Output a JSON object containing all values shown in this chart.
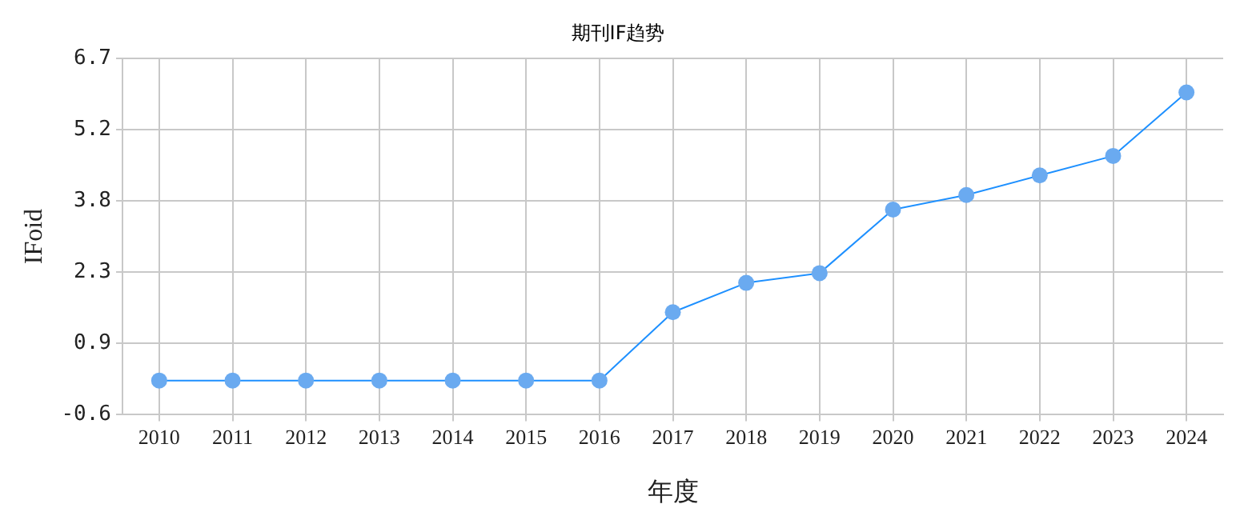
{
  "chart_data": {
    "type": "line",
    "title": "期刊IF趋势",
    "xlabel": "年度",
    "ylabel": "IFoid",
    "categories": [
      "2010",
      "2011",
      "2012",
      "2013",
      "2014",
      "2015",
      "2016",
      "2017",
      "2018",
      "2019",
      "2020",
      "2021",
      "2022",
      "2023",
      "2024"
    ],
    "series": [
      {
        "color": "#1e90ff",
        "values": [
          0.1,
          0.1,
          0.1,
          0.1,
          0.1,
          0.1,
          0.1,
          1.5,
          2.1,
          2.3,
          3.6,
          3.9,
          4.3,
          4.7,
          6.0
        ]
      }
    ],
    "ylim": [
      -0.6,
      6.7
    ],
    "yticks": [
      -0.6,
      {
        "value": 0.86,
        "label": "0.9"
      },
      {
        "value": 2.32,
        "label": "2.3"
      },
      {
        "value": 3.78,
        "label": "3.8"
      },
      {
        "value": 5.24,
        "label": "5.2"
      },
      6.7
    ],
    "grid": true,
    "marker": "circle",
    "line_style": "solid",
    "legend": false
  }
}
